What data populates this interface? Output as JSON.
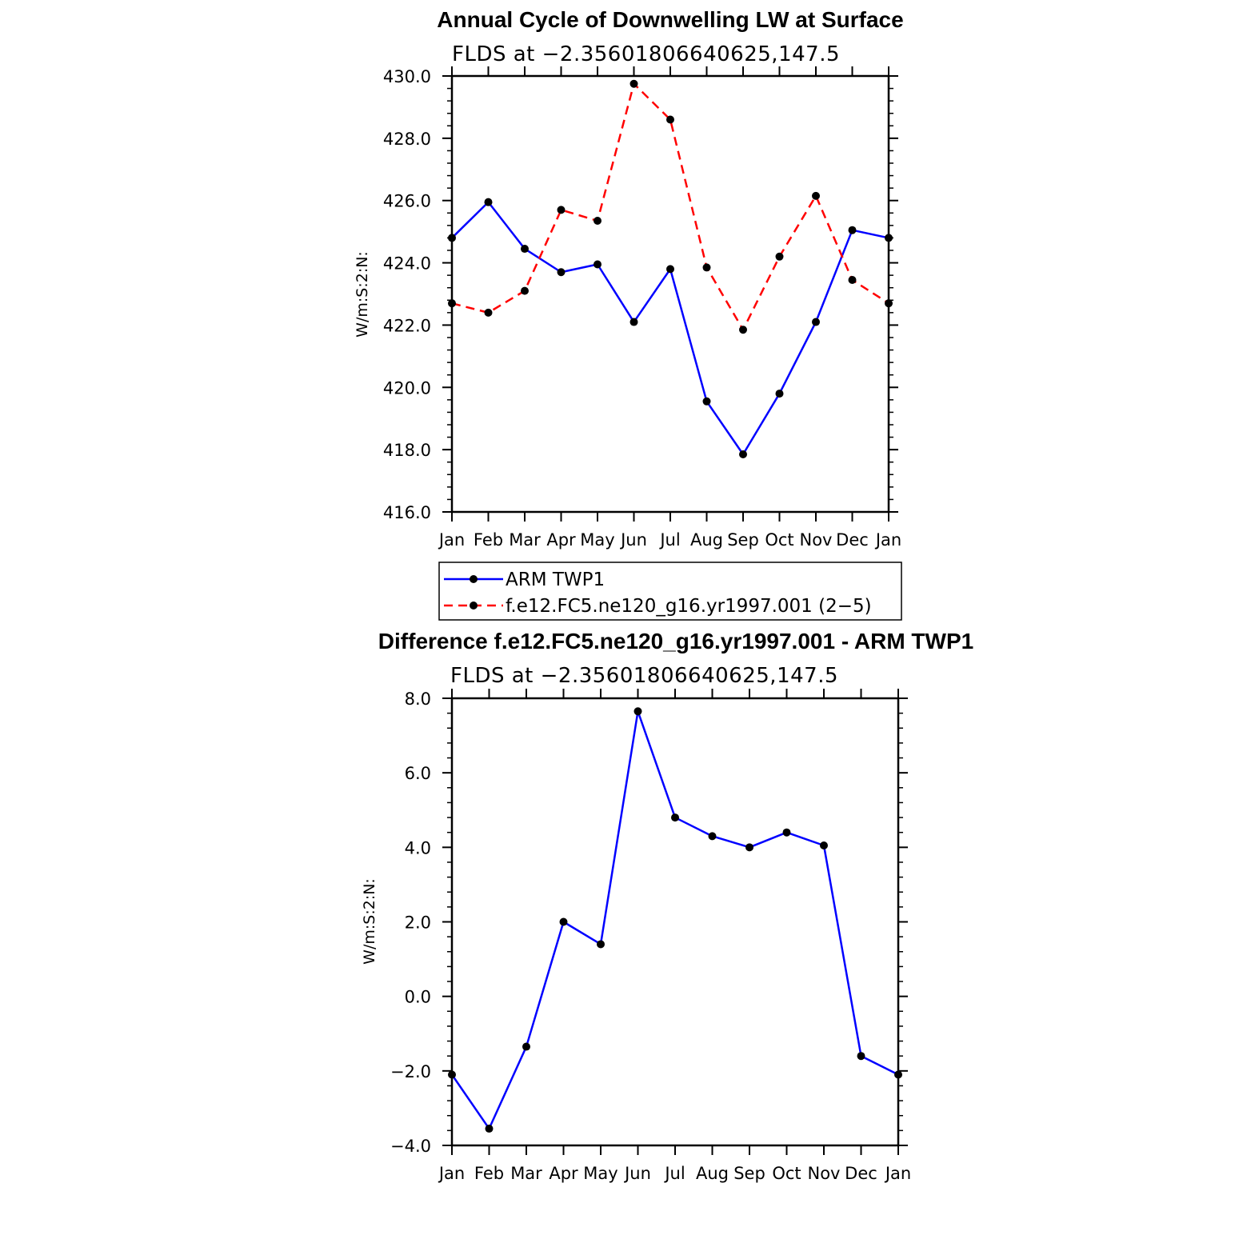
{
  "chart_data": [
    {
      "type": "line",
      "title": "Annual Cycle of Downwelling LW at Surface",
      "subtitle": "FLDS at −2.35601806640625,147.5",
      "ylabel": "W/m:S:2:N:",
      "xlabel": "",
      "categories": [
        "Jan",
        "Feb",
        "Mar",
        "Apr",
        "May",
        "Jun",
        "Jul",
        "Aug",
        "Sep",
        "Oct",
        "Nov",
        "Dec",
        "Jan"
      ],
      "ylim": [
        416.0,
        430.0
      ],
      "yticks": [
        "416.0",
        "418.0",
        "420.0",
        "422.0",
        "424.0",
        "426.0",
        "428.0",
        "430.0"
      ],
      "series": [
        {
          "name": "ARM TWP1",
          "color": "#0000ff",
          "style": "solid",
          "values": [
            424.8,
            425.95,
            424.45,
            423.7,
            423.95,
            422.1,
            423.8,
            419.55,
            417.85,
            419.8,
            422.1,
            425.05,
            424.8
          ]
        },
        {
          "name": "f.e12.FC5.ne120_g16.yr1997.001 (2−5)",
          "color": "#ff0000",
          "style": "dashed",
          "values": [
            422.7,
            422.4,
            423.1,
            425.7,
            425.35,
            429.75,
            428.6,
            423.85,
            421.85,
            424.2,
            426.15,
            423.45,
            422.7
          ]
        }
      ],
      "legend": "below"
    },
    {
      "type": "line",
      "title": "Difference f.e12.FC5.ne120_g16.yr1997.001 - ARM TWP1",
      "subtitle": "FLDS at −2.35601806640625,147.5",
      "ylabel": "W/m:S:2:N:",
      "xlabel": "",
      "categories": [
        "Jan",
        "Feb",
        "Mar",
        "Apr",
        "May",
        "Jun",
        "Jul",
        "Aug",
        "Sep",
        "Oct",
        "Nov",
        "Dec",
        "Jan"
      ],
      "ylim": [
        -4.0,
        8.0
      ],
      "yticks": [
        "−4.0",
        "−2.0",
        "0.0",
        "2.0",
        "4.0",
        "6.0",
        "8.0"
      ],
      "series": [
        {
          "color": "#0000ff",
          "style": "solid",
          "values": [
            -2.1,
            -3.55,
            -1.35,
            2.0,
            1.4,
            7.65,
            4.8,
            4.3,
            4.0,
            4.4,
            4.05,
            -1.6,
            -2.1
          ]
        }
      ]
    }
  ]
}
